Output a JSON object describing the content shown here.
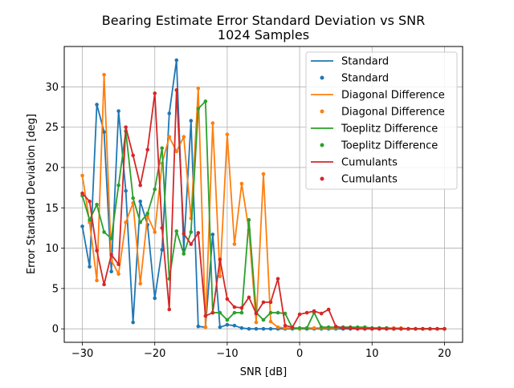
{
  "chart_data": {
    "type": "line",
    "title": "Bearing Estimate Error Standard Deviation vs SNR",
    "subtitle": "1024 Samples",
    "xlabel": "SNR [dB]",
    "ylabel": "Error Standard Deviation [deg]",
    "xlim": [
      -32.5,
      22.5
    ],
    "ylim": [
      -1.67,
      35.0
    ],
    "xticks": [
      -30,
      -20,
      -10,
      0,
      10,
      20
    ],
    "yticks": [
      0,
      5,
      10,
      15,
      20,
      25,
      30
    ],
    "grid": true,
    "legend_position": "upper right",
    "x": [
      -30,
      -29,
      -28,
      -27,
      -26,
      -25,
      -24,
      -23,
      -22,
      -21,
      -20,
      -19,
      -18,
      -17,
      -16,
      -15,
      -14,
      -13,
      -12,
      -11,
      -10,
      -9,
      -8,
      -7,
      -6,
      -5,
      -4,
      -3,
      -2,
      -1,
      0,
      1,
      2,
      3,
      4,
      5,
      6,
      7,
      8,
      9,
      10,
      11,
      12,
      13,
      14,
      15,
      16,
      17,
      18,
      19,
      20
    ],
    "series": [
      {
        "name": "Standard",
        "color": "#1f77b4",
        "values": [
          12.7,
          7.7,
          27.8,
          24.4,
          7.1,
          27.0,
          17.1,
          0.8,
          15.8,
          12.9,
          3.8,
          9.8,
          26.7,
          33.3,
          9.8,
          25.8,
          0.3,
          0.2,
          11.7,
          0.2,
          0.5,
          0.4,
          0.1,
          0.0,
          0.0,
          0.0,
          0.0,
          0.0,
          0.0,
          0.0,
          0.0,
          0.0,
          0.0,
          0.0,
          0.0,
          0.0,
          0.0,
          0.0,
          0.0,
          0.0,
          0.0,
          0.0,
          0.0,
          0.0,
          0.0,
          0.0,
          0.0,
          0.0,
          0.0,
          0.0,
          0.0
        ]
      },
      {
        "name": "Diagonal Difference",
        "color": "#ff7f0e",
        "values": [
          19.0,
          13.2,
          6.0,
          31.5,
          8.5,
          6.8,
          13.2,
          15.6,
          5.6,
          14.0,
          12.0,
          20.5,
          23.8,
          22.0,
          23.8,
          13.7,
          29.8,
          0.2,
          25.5,
          6.5,
          24.1,
          10.5,
          18.0,
          12.2,
          0.8,
          19.2,
          0.9,
          0.2,
          0.1,
          0.1,
          0.0,
          0.1,
          0.1,
          0.1,
          0.1,
          0.1,
          0.2,
          0.2,
          0.1,
          0.1,
          0.1,
          0.1,
          0.1,
          0.1,
          0.1,
          0.0,
          0.0,
          0.0,
          0.0,
          0.0,
          0.0
        ]
      },
      {
        "name": "Toeplitz Difference",
        "color": "#2ca02c",
        "values": [
          16.5,
          13.5,
          15.4,
          12.0,
          11.2,
          17.8,
          24.5,
          16.2,
          13.2,
          14.3,
          17.3,
          22.4,
          6.2,
          12.1,
          9.3,
          12.0,
          27.3,
          28.2,
          2.0,
          2.0,
          1.1,
          2.0,
          2.0,
          13.5,
          2.0,
          1.1,
          2.0,
          2.0,
          1.9,
          0.1,
          0.1,
          0.1,
          2.0,
          0.2,
          0.2,
          0.2,
          0.2,
          0.2,
          0.2,
          0.2,
          0.1,
          0.1,
          0.1,
          0.0,
          0.0,
          0.0,
          0.0,
          0.0,
          0.0,
          0.0,
          0.0
        ]
      },
      {
        "name": "Cumulants",
        "color": "#d62728",
        "values": [
          16.8,
          15.8,
          9.7,
          5.5,
          9.2,
          8.0,
          25.0,
          21.5,
          17.8,
          22.2,
          29.2,
          12.5,
          2.4,
          29.6,
          11.8,
          10.5,
          11.9,
          1.6,
          2.0,
          8.6,
          3.7,
          2.7,
          2.6,
          3.9,
          1.9,
          3.3,
          3.3,
          6.2,
          0.4,
          0.2,
          1.8,
          2.0,
          2.2,
          1.9,
          2.4,
          0.3,
          0.1,
          0.1,
          0.0,
          0.0,
          0.0,
          0.0,
          0.0,
          0.0,
          0.0,
          0.0,
          0.0,
          0.0,
          0.0,
          0.0,
          0.0
        ]
      }
    ],
    "legend": [
      {
        "label": "Standard",
        "kind": "line",
        "series": 0
      },
      {
        "label": "Standard",
        "kind": "marker",
        "series": 0
      },
      {
        "label": "Diagonal Difference",
        "kind": "line",
        "series": 1
      },
      {
        "label": "Diagonal Difference",
        "kind": "marker",
        "series": 1
      },
      {
        "label": "Toeplitz Difference",
        "kind": "line",
        "series": 2
      },
      {
        "label": "Toeplitz Difference",
        "kind": "marker",
        "series": 2
      },
      {
        "label": "Cumulants",
        "kind": "line",
        "series": 3
      },
      {
        "label": "Cumulants",
        "kind": "marker",
        "series": 3
      }
    ]
  }
}
